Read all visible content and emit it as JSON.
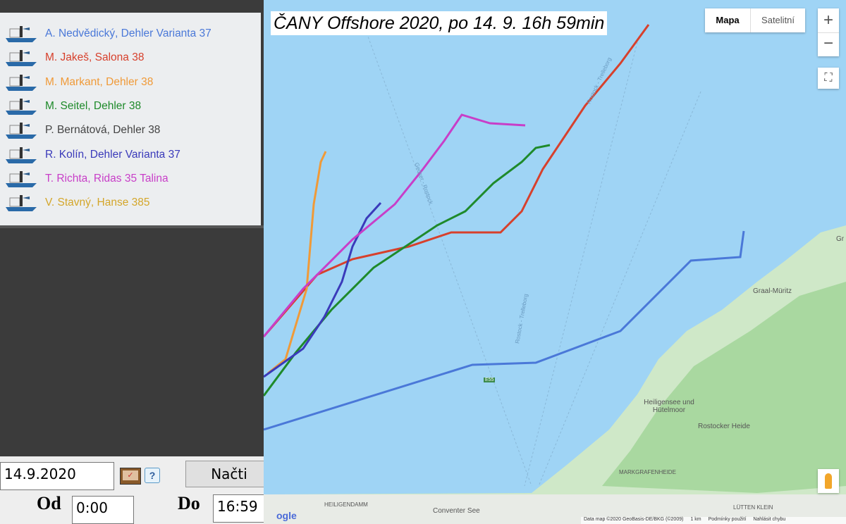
{
  "title": "ČANY Offshore 2020, po 14. 9. 16h 59min",
  "boats": [
    {
      "label": "A. Nedvědický, Dehler Varianta 37",
      "color": "#4a78d8"
    },
    {
      "label": "M. Jakeš, Salona 38",
      "color": "#d7402c"
    },
    {
      "label": "M. Markant, Dehler 38",
      "color": "#f09a38"
    },
    {
      "label": "M. Seitel, Dehler 38",
      "color": "#1e8a2a"
    },
    {
      "label": "P. Bernátová, Dehler 38",
      "color": "#444444"
    },
    {
      "label": "R. Kolín, Dehler Varianta 37",
      "color": "#3a3aba"
    },
    {
      "label": "T. Richta, Ridas 35 Talina",
      "color": "#c83ec8"
    },
    {
      "label": "V. Stavný, Hanse 385",
      "color": "#d4a62a"
    }
  ],
  "controls": {
    "date": "14.9.2020",
    "load_label": "Načti",
    "from_label": "Od",
    "from": "0:00",
    "to_label": "Do",
    "to": "16:59",
    "help": "?"
  },
  "map": {
    "type_map": "Mapa",
    "type_satellite": "Satelitní",
    "zoom_in": "+",
    "zoom_out": "−",
    "labels": {
      "graal": "Graal-Müritz",
      "heiligensee": "Heiligensee und Hütelmoor",
      "rostocker": "Rostocker Heide",
      "markgrafenheide": "MARKGRAFENHEIDE",
      "heiligendamm": "HEILIGENDAMM",
      "conventer": "Conventer See",
      "lutten": "LÜTTEN KLEIN",
      "road": "105",
      "e55": "E55",
      "gr": "Gr",
      "route1": "Gedser - Rostock",
      "route2": "Rostock - Trelleborg",
      "route3": "Rostock - Trelleborg"
    },
    "google": "ogle",
    "attribution": "Data map ©2020 GeoBasis-DE/BKG (©2009)",
    "scale": "1 km",
    "terms": "Podmínky použití",
    "report": "Nahlásit chybu"
  }
}
